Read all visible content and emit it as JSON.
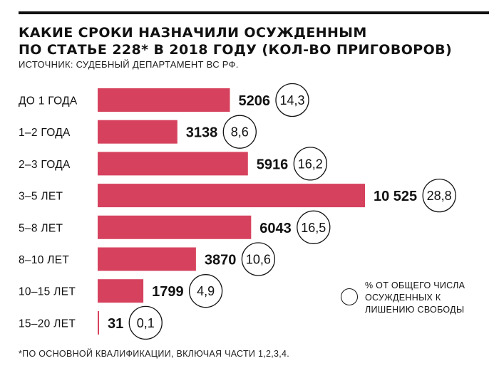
{
  "title": {
    "line1": "КАКИЕ СРОКИ НАЗНАЧИЛИ ОСУЖДЕННЫМ",
    "line2": "ПО СТАТЬЕ 228* В 2018 ГОДУ (КОЛ-ВО ПРИГОВОРОВ)"
  },
  "source": "ИСТОЧНИК: СУДЕБНЫЙ ДЕПАРТАМЕНТ ВС РФ.",
  "legend": {
    "text": "% ОТ ОБЩЕГО ЧИСЛА ОСУЖДЕННЫХ К ЛИШЕНИЮ СВОБОДЫ"
  },
  "footnote": "*ПО ОСНОВНОЙ КВАЛИФИКАЦИИ, ВКЛЮЧАЯ ЧАСТИ 1,2,3,4.",
  "colors": {
    "bar": "#d6425e",
    "text": "#111111"
  },
  "chart_data": {
    "type": "bar",
    "orientation": "horizontal",
    "categories": [
      "ДО 1 ГОДА",
      "1–2 ГОДА",
      "2–3 ГОДА",
      "3–5 ЛЕТ",
      "5–8 ЛЕТ",
      "8–10 ЛЕТ",
      "10–15 ЛЕТ",
      "15–20 ЛЕТ"
    ],
    "values": [
      5206,
      3138,
      5916,
      10525,
      6043,
      3870,
      1799,
      31
    ],
    "value_labels": [
      "5206",
      "3138",
      "5916",
      "10 525",
      "6043",
      "3870",
      "1799",
      "31"
    ],
    "percents": [
      "14,3",
      "8,6",
      "16,2",
      "28,8",
      "16,5",
      "10,6",
      "4,9",
      "0,1"
    ],
    "grid": false
  }
}
